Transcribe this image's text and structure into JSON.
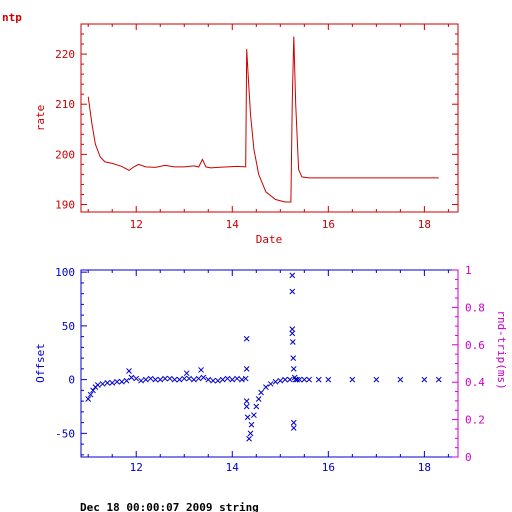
{
  "header": {
    "app_label": "ntp"
  },
  "footer": {
    "text": "Dec 18 00:00:07 2009 string"
  },
  "colors": {
    "rate": "#cc0000",
    "offset": "#0000cc",
    "roundtrip": "#cc00cc"
  },
  "chart_data": [
    {
      "type": "line",
      "xlabel": "Date",
      "ylabel": "rate",
      "xlim": [
        10.85,
        18.7
      ],
      "ylim": [
        188.5,
        226
      ],
      "xticks": [
        12,
        14,
        16,
        18
      ],
      "yticks": [
        190,
        200,
        210,
        220
      ],
      "grid": false,
      "series": [
        {
          "x": [
            11.0,
            11.08,
            11.15,
            11.25,
            11.35,
            11.5,
            11.7,
            11.85,
            11.95,
            12.05,
            12.2,
            12.4,
            12.6,
            12.8,
            13.0,
            13.2,
            13.3,
            13.38,
            13.45,
            13.55,
            13.7,
            13.9,
            14.1,
            14.28,
            14.3,
            14.33,
            14.38,
            14.45,
            14.55,
            14.7,
            14.9,
            15.1,
            15.22,
            15.25,
            15.28,
            15.32,
            15.38,
            15.45,
            15.6,
            16.0,
            17.0,
            18.0,
            18.3
          ],
          "y": [
            211.5,
            206,
            202,
            199.5,
            198.5,
            198.2,
            197.6,
            196.8,
            197.5,
            198,
            197.5,
            197.4,
            197.8,
            197.5,
            197.5,
            197.7,
            197.5,
            199,
            197.5,
            197.3,
            197.4,
            197.5,
            197.6,
            197.5,
            221,
            216,
            208,
            201,
            196,
            192.5,
            191,
            190.5,
            190.5,
            211,
            223.5,
            210,
            197,
            195.5,
            195.3,
            195.3,
            195.3,
            195.3,
            195.3
          ]
        }
      ]
    },
    {
      "type": "scatter",
      "xlabel": "",
      "ylabel": "Offset",
      "y2label": "rnd-trip(ms)",
      "xlim": [
        10.85,
        18.7
      ],
      "ylim": [
        -72,
        102
      ],
      "y2lim": [
        0,
        1
      ],
      "xticks": [
        12,
        14,
        16,
        18
      ],
      "yticks": [
        -50,
        0,
        50,
        100
      ],
      "y2ticks": [
        0,
        0.2,
        0.4,
        0.6,
        0.8,
        1
      ],
      "grid": false,
      "series": [
        {
          "x": [
            11.0,
            11.05,
            11.1,
            11.15,
            11.2,
            11.3,
            11.4,
            11.5,
            11.6,
            11.7,
            11.8,
            11.85,
            11.9,
            12.0,
            12.1,
            12.2,
            12.3,
            12.4,
            12.5,
            12.6,
            12.7,
            12.8,
            12.9,
            13.0,
            13.05,
            13.1,
            13.2,
            13.3,
            13.35,
            13.4,
            13.5,
            13.6,
            13.7,
            13.8,
            13.9,
            14.0,
            14.1,
            14.2,
            14.28,
            14.3,
            14.3,
            14.3,
            14.3,
            14.32,
            14.35,
            14.38,
            14.4,
            14.45,
            14.5,
            14.55,
            14.6,
            14.7,
            14.8,
            14.9,
            15.0,
            15.1,
            15.2,
            15.25,
            15.25,
            15.25,
            15.25,
            15.26,
            15.27,
            15.28,
            15.28,
            15.28,
            15.3,
            15.32,
            15.35,
            15.4,
            15.5,
            15.6,
            15.8,
            16.0,
            16.5,
            17.0,
            17.5,
            18.0,
            18.3
          ],
          "y": [
            -18,
            -14,
            -10,
            -7,
            -5,
            -4,
            -3,
            -3,
            -2,
            -2,
            -1,
            8,
            2,
            1,
            -1,
            0,
            1,
            0,
            0,
            1,
            1,
            0,
            0,
            1,
            6,
            1,
            0,
            1,
            9,
            2,
            0,
            -1,
            -1,
            0,
            1,
            0,
            1,
            0,
            1,
            38,
            10,
            -20,
            -25,
            -35,
            -55,
            -50,
            -42,
            -33,
            -25,
            -18,
            -12,
            -7,
            -4,
            -2,
            -1,
            0,
            0,
            97,
            82,
            47,
            43,
            35,
            20,
            -40,
            -45,
            10,
            2,
            0,
            0,
            0,
            0,
            0,
            0,
            0,
            0,
            0,
            0,
            0,
            0
          ]
        }
      ]
    }
  ]
}
